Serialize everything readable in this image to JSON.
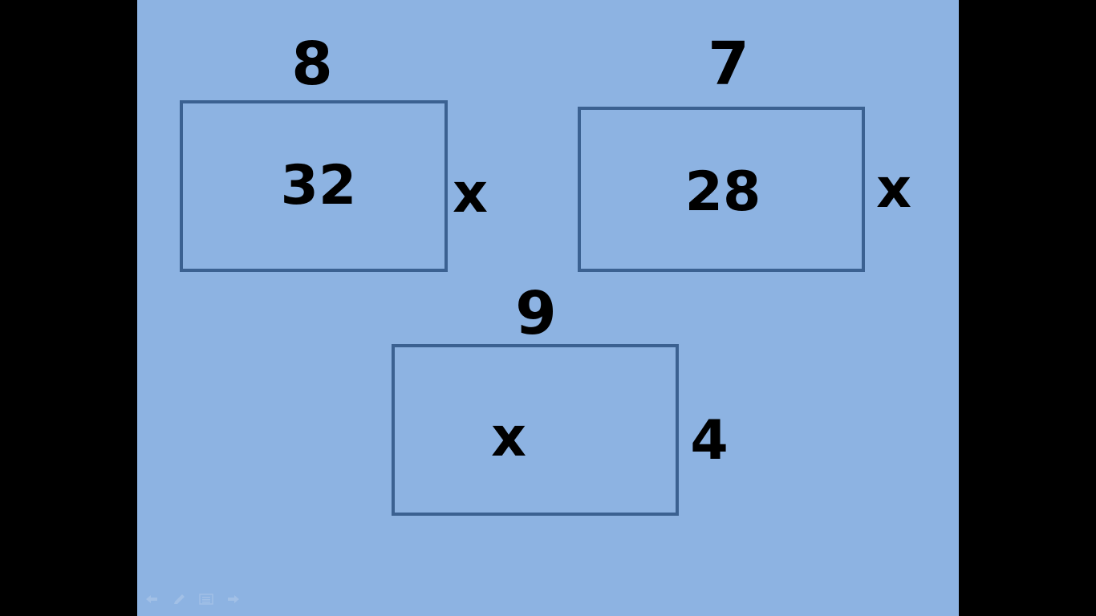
{
  "slide": {
    "background": "#8db3e2",
    "border_color": "#3b6191",
    "problems": [
      {
        "top_label": "8",
        "center_label": "32",
        "side_label": "x"
      },
      {
        "top_label": "7",
        "center_label": "28",
        "side_label": "x"
      },
      {
        "top_label": "9",
        "center_label": "x",
        "side_label": "4"
      }
    ]
  },
  "toolbar": {
    "buttons": [
      {
        "icon": "previous-arrow-icon"
      },
      {
        "icon": "pen-icon"
      },
      {
        "icon": "menu-icon"
      },
      {
        "icon": "next-arrow-icon"
      }
    ]
  }
}
